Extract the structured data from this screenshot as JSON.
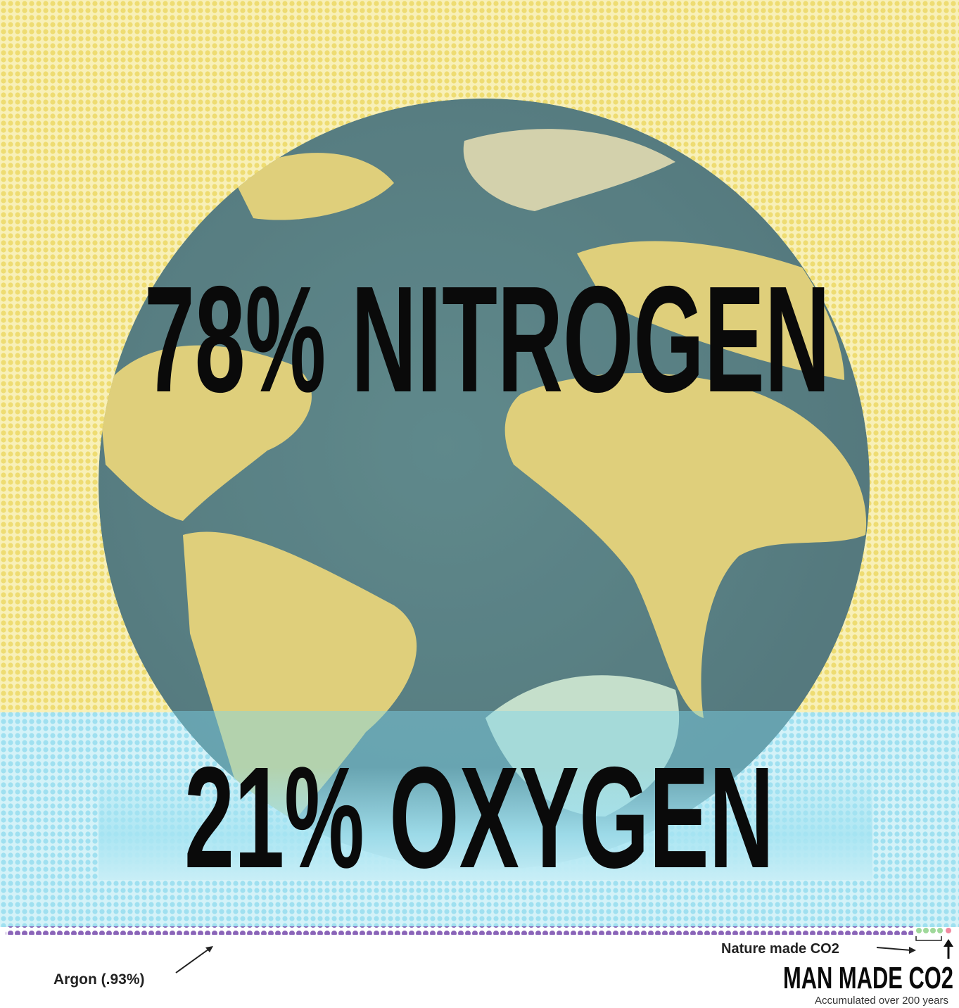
{
  "nitrogen": {
    "label": "78% NITROGEN"
  },
  "oxygen": {
    "label": "21% OXYGEN"
  },
  "argon": {
    "label": "Argon (.93%)"
  },
  "nature_co2": {
    "label": "Nature made CO2"
  },
  "man_made_co2": {
    "label": "MAN MADE CO2",
    "note": "Accumulated over 200 years"
  }
}
